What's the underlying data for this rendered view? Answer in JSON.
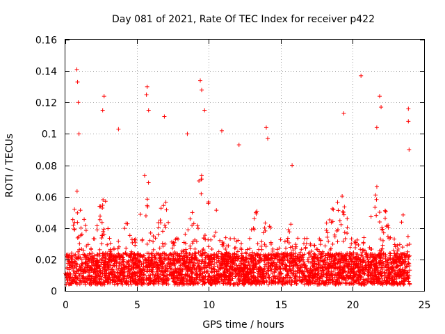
{
  "chart_data": {
    "type": "scatter",
    "title": "Day 081 of 2021, Rate Of TEC Index for receiver p422",
    "xlabel": "GPS time / hours",
    "ylabel": "ROTI / TECUs",
    "xlim": [
      0,
      25
    ],
    "ylim": [
      0,
      0.16
    ],
    "xticks": [
      "0",
      "5",
      "10",
      "15",
      "20",
      "25"
    ],
    "yticks": [
      "0",
      "0.02",
      "0.04",
      "0.06",
      "0.08",
      "0.1",
      "0.12",
      "0.14",
      "0.16"
    ],
    "grid": true,
    "marker": "+",
    "color": "#ff0000",
    "series": [
      {
        "peaks": [
          {
            "x": 0.8,
            "y": 0.141
          },
          {
            "x": 0.85,
            "y": 0.133
          },
          {
            "x": 0.9,
            "y": 0.12
          },
          {
            "x": 0.95,
            "y": 0.1
          },
          {
            "x": 2.7,
            "y": 0.124
          },
          {
            "x": 2.6,
            "y": 0.115
          },
          {
            "x": 3.7,
            "y": 0.103
          },
          {
            "x": 5.7,
            "y": 0.13
          },
          {
            "x": 5.65,
            "y": 0.125
          },
          {
            "x": 5.8,
            "y": 0.115
          },
          {
            "x": 6.9,
            "y": 0.111
          },
          {
            "x": 8.5,
            "y": 0.1
          },
          {
            "x": 9.4,
            "y": 0.134
          },
          {
            "x": 9.5,
            "y": 0.128
          },
          {
            "x": 9.7,
            "y": 0.115
          },
          {
            "x": 10.9,
            "y": 0.102
          },
          {
            "x": 12.1,
            "y": 0.093
          },
          {
            "x": 14.0,
            "y": 0.104
          },
          {
            "x": 14.1,
            "y": 0.097
          },
          {
            "x": 15.8,
            "y": 0.08
          },
          {
            "x": 19.4,
            "y": 0.113
          },
          {
            "x": 20.6,
            "y": 0.137
          },
          {
            "x": 21.9,
            "y": 0.124
          },
          {
            "x": 22.0,
            "y": 0.117
          },
          {
            "x": 21.7,
            "y": 0.104
          },
          {
            "x": 23.9,
            "y": 0.116
          },
          {
            "x": 23.9,
            "y": 0.108
          },
          {
            "x": 23.95,
            "y": 0.09
          }
        ]
      }
    ]
  }
}
